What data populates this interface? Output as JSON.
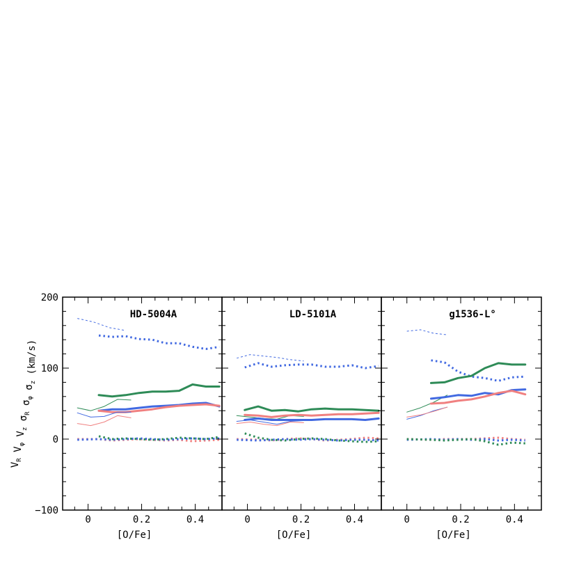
{
  "chart_data": [
    {
      "type": "line",
      "title": "HD-5004A",
      "xlabel": "[O/Fe]",
      "xlim": [
        -0.095,
        0.5
      ],
      "ylim": [
        -100,
        200
      ],
      "x_ticks": [
        0,
        0.2,
        0.4
      ],
      "x_tick_labels": [
        "0",
        "0.2",
        "0.4"
      ],
      "y_ticks": [
        -100,
        0,
        100,
        200
      ],
      "y_tick_labels": [
        "−100",
        "0",
        "100",
        "200"
      ],
      "series": [
        {
          "name": "sigma_phi thin dotted",
          "color": "#4169e1",
          "style": "dotted",
          "width": "thin",
          "x": [
            -0.04,
            0.02,
            0.08,
            0.14
          ],
          "y": [
            170,
            165,
            157,
            153
          ]
        },
        {
          "name": "sigma_phi thick dotted",
          "color": "#4169e1",
          "style": "dotted",
          "width": "thick",
          "x": [
            0.04,
            0.09,
            0.14,
            0.19,
            0.24,
            0.29,
            0.34,
            0.39,
            0.44,
            0.49
          ],
          "y": [
            146,
            144,
            145,
            141,
            140,
            135,
            135,
            130,
            127,
            130
          ]
        },
        {
          "name": "sigma_z thick",
          "color": "#2e8b57",
          "style": "solid",
          "width": "thick",
          "x": [
            0.04,
            0.09,
            0.14,
            0.19,
            0.24,
            0.29,
            0.34,
            0.39,
            0.44,
            0.49
          ],
          "y": [
            62,
            60,
            62,
            65,
            67,
            67,
            68,
            77,
            74,
            74
          ]
        },
        {
          "name": "sigma_z thin",
          "color": "#2e8b57",
          "style": "solid",
          "width": "thin",
          "x": [
            -0.04,
            0.01,
            0.06,
            0.11,
            0.16
          ],
          "y": [
            44,
            40,
            46,
            56,
            55
          ]
        },
        {
          "name": "sigma_phi thick",
          "color": "#4169e1",
          "style": "solid",
          "width": "thick",
          "x": [
            0.04,
            0.09,
            0.14,
            0.19,
            0.24,
            0.29,
            0.34,
            0.39,
            0.44,
            0.49
          ],
          "y": [
            40,
            42,
            42,
            44,
            46,
            47,
            48,
            50,
            51,
            46
          ]
        },
        {
          "name": "sigma_R thick",
          "color": "#f08080",
          "style": "solid",
          "width": "thick",
          "x": [
            0.04,
            0.09,
            0.14,
            0.19,
            0.24,
            0.29,
            0.34,
            0.39,
            0.44,
            0.49
          ],
          "y": [
            40,
            38,
            38,
            40,
            42,
            45,
            47,
            48,
            49,
            47
          ]
        },
        {
          "name": "sigma_phi thin",
          "color": "#4169e1",
          "style": "solid",
          "width": "thin",
          "x": [
            -0.04,
            0.01,
            0.06,
            0.11,
            0.16
          ],
          "y": [
            37,
            31,
            32,
            38,
            38
          ]
        },
        {
          "name": "sigma_R thin",
          "color": "#f08080",
          "style": "solid",
          "width": "thin",
          "x": [
            -0.04,
            0.01,
            0.06,
            0.11,
            0.16
          ],
          "y": [
            22,
            19,
            24,
            33,
            30
          ]
        },
        {
          "name": "V_R dotted",
          "color": "#f08080",
          "style": "dotted",
          "width": "thick",
          "x": [
            -0.04,
            0.04,
            0.09,
            0.14,
            0.19,
            0.24,
            0.29,
            0.34,
            0.39,
            0.44,
            0.49
          ],
          "y": [
            0,
            0,
            -2,
            -1,
            0,
            -1,
            -2,
            -1,
            -3,
            -2,
            -1
          ]
        },
        {
          "name": "V_phi dotted",
          "color": "#4169e1",
          "style": "dotted",
          "width": "thick",
          "x": [
            -0.04,
            0.04,
            0.09,
            0.14,
            0.19,
            0.24,
            0.29,
            0.34,
            0.39,
            0.44,
            0.49
          ],
          "y": [
            -1,
            0,
            -1,
            0,
            1,
            0,
            -1,
            0,
            1,
            0,
            1
          ]
        },
        {
          "name": "V_z dotted",
          "color": "#2e8b57",
          "style": "dotted",
          "width": "thick",
          "x": [
            0.04,
            0.09,
            0.14,
            0.19,
            0.24,
            0.29,
            0.34,
            0.39,
            0.44,
            0.49
          ],
          "y": [
            4,
            0,
            1,
            0,
            -1,
            0,
            2,
            1,
            0,
            3
          ]
        }
      ]
    },
    {
      "type": "line",
      "title": "LD-5101A",
      "xlabel": "[O/Fe]",
      "xlim": [
        -0.095,
        0.5
      ],
      "ylim": [
        -100,
        200
      ],
      "x_ticks": [
        0,
        0.2,
        0.4
      ],
      "x_tick_labels": [
        "0",
        "0.2",
        "0.4"
      ],
      "y_ticks": [
        -100,
        0,
        100,
        200
      ],
      "y_tick_labels": [
        "",
        "",
        "",
        ""
      ],
      "series": [
        {
          "name": "sigma_phi thin dotted",
          "color": "#4169e1",
          "style": "dotted",
          "width": "thin",
          "x": [
            -0.04,
            0.01,
            0.06,
            0.11,
            0.16,
            0.21
          ],
          "y": [
            114,
            119,
            117,
            115,
            112,
            110
          ]
        },
        {
          "name": "sigma_phi thick dotted",
          "color": "#4169e1",
          "style": "dotted",
          "width": "thick",
          "x": [
            -0.01,
            0.04,
            0.09,
            0.14,
            0.19,
            0.24,
            0.29,
            0.34,
            0.39,
            0.44,
            0.49
          ],
          "y": [
            101,
            107,
            102,
            104,
            105,
            105,
            102,
            102,
            104,
            100,
            103
          ]
        },
        {
          "name": "sigma_z thick",
          "color": "#2e8b57",
          "style": "solid",
          "width": "thick",
          "x": [
            -0.01,
            0.04,
            0.09,
            0.14,
            0.19,
            0.24,
            0.29,
            0.34,
            0.39,
            0.44,
            0.49
          ],
          "y": [
            41,
            46,
            40,
            41,
            39,
            42,
            43,
            42,
            42,
            41,
            40
          ]
        },
        {
          "name": "sigma_z thin",
          "color": "#2e8b57",
          "style": "solid",
          "width": "thin",
          "x": [
            -0.04,
            0.01,
            0.06,
            0.11,
            0.16,
            0.21
          ],
          "y": [
            33,
            31,
            29,
            28,
            33,
            32
          ]
        },
        {
          "name": "sigma_R thick",
          "color": "#f08080",
          "style": "solid",
          "width": "thick",
          "x": [
            -0.01,
            0.04,
            0.09,
            0.14,
            0.19,
            0.24,
            0.29,
            0.34,
            0.39,
            0.44,
            0.49
          ],
          "y": [
            34,
            33,
            31,
            33,
            34,
            33,
            34,
            35,
            35,
            36,
            37
          ]
        },
        {
          "name": "sigma_phi thick",
          "color": "#4169e1",
          "style": "solid",
          "width": "thick",
          "x": [
            -0.01,
            0.04,
            0.09,
            0.14,
            0.19,
            0.24,
            0.29,
            0.34,
            0.39,
            0.44,
            0.49
          ],
          "y": [
            27,
            29,
            27,
            27,
            27,
            27,
            28,
            28,
            28,
            27,
            29
          ]
        },
        {
          "name": "sigma_phi thin",
          "color": "#4169e1",
          "style": "solid",
          "width": "thin",
          "x": [
            -0.04,
            0.01,
            0.06,
            0.11,
            0.16,
            0.21
          ],
          "y": [
            25,
            27,
            24,
            21,
            25,
            26
          ]
        },
        {
          "name": "sigma_R thin",
          "color": "#f08080",
          "style": "solid",
          "width": "thin",
          "x": [
            -0.04,
            0.01,
            0.06,
            0.11,
            0.16,
            0.21
          ],
          "y": [
            22,
            24,
            21,
            19,
            24,
            23
          ]
        },
        {
          "name": "V_R dotted",
          "color": "#f08080",
          "style": "dotted",
          "width": "thick",
          "x": [
            -0.04,
            0.04,
            0.09,
            0.14,
            0.19,
            0.24,
            0.29,
            0.34,
            0.39,
            0.44,
            0.49
          ],
          "y": [
            0,
            -1,
            -2,
            0,
            1,
            0,
            -2,
            -1,
            0,
            2,
            1
          ]
        },
        {
          "name": "V_phi dotted",
          "color": "#4169e1",
          "style": "dotted",
          "width": "thick",
          "x": [
            -0.04,
            0.04,
            0.09,
            0.14,
            0.19,
            0.24,
            0.29,
            0.34,
            0.39,
            0.44,
            0.49
          ],
          "y": [
            -1,
            -2,
            -1,
            0,
            -1,
            0,
            -1,
            -2,
            -1,
            -1,
            -2
          ]
        },
        {
          "name": "V_z dotted",
          "color": "#2e8b57",
          "style": "dotted",
          "width": "thick",
          "x": [
            -0.01,
            0.04,
            0.09,
            0.14,
            0.19,
            0.24,
            0.29,
            0.34,
            0.39,
            0.44,
            0.49
          ],
          "y": [
            8,
            2,
            -1,
            -2,
            0,
            1,
            0,
            -2,
            -3,
            -4,
            -3
          ]
        }
      ]
    },
    {
      "type": "line",
      "title": "g1536-L°",
      "xlabel": "[O/Fe]",
      "xlim": [
        -0.095,
        0.5
      ],
      "ylim": [
        -100,
        200
      ],
      "x_ticks": [
        0,
        0.2,
        0.4
      ],
      "x_tick_labels": [
        "0",
        "0.2",
        "0.4"
      ],
      "y_ticks": [
        -100,
        0,
        100,
        200
      ],
      "y_tick_labels": [
        "",
        "",
        "",
        ""
      ],
      "series": [
        {
          "name": "sigma_phi thin dotted",
          "color": "#4169e1",
          "style": "dotted",
          "width": "thin",
          "x": [
            0.0,
            0.05,
            0.1,
            0.15
          ],
          "y": [
            152,
            154,
            149,
            147
          ]
        },
        {
          "name": "sigma_phi thick dotted",
          "color": "#4169e1",
          "style": "dotted",
          "width": "thick",
          "x": [
            0.09,
            0.14,
            0.19,
            0.24,
            0.29,
            0.34,
            0.39,
            0.44
          ],
          "y": [
            111,
            108,
            95,
            88,
            86,
            82,
            87,
            88
          ]
        },
        {
          "name": "sigma_z thick",
          "color": "#2e8b57",
          "style": "solid",
          "width": "thick",
          "x": [
            0.09,
            0.14,
            0.19,
            0.24,
            0.29,
            0.34,
            0.39,
            0.44
          ],
          "y": [
            79,
            80,
            86,
            89,
            100,
            107,
            105,
            105
          ]
        },
        {
          "name": "sigma_z thin",
          "color": "#2e8b57",
          "style": "solid",
          "width": "thin",
          "x": [
            0.0,
            0.05,
            0.1,
            0.15
          ],
          "y": [
            38,
            44,
            52,
            62
          ]
        },
        {
          "name": "sigma_phi thick",
          "color": "#4169e1",
          "style": "solid",
          "width": "thick",
          "x": [
            0.09,
            0.14,
            0.19,
            0.24,
            0.29,
            0.34,
            0.39,
            0.44
          ],
          "y": [
            57,
            59,
            62,
            61,
            65,
            63,
            69,
            70
          ]
        },
        {
          "name": "sigma_R thick",
          "color": "#f08080",
          "style": "solid",
          "width": "thick",
          "x": [
            0.09,
            0.14,
            0.19,
            0.24,
            0.29,
            0.34,
            0.39,
            0.44
          ],
          "y": [
            50,
            51,
            54,
            56,
            60,
            65,
            68,
            63
          ]
        },
        {
          "name": "sigma_phi thin",
          "color": "#4169e1",
          "style": "solid",
          "width": "thin",
          "x": [
            0.0,
            0.05,
            0.1,
            0.15
          ],
          "y": [
            28,
            33,
            40,
            45
          ]
        },
        {
          "name": "sigma_R thin",
          "color": "#f08080",
          "style": "solid",
          "width": "thin",
          "x": [
            0.0,
            0.05,
            0.1,
            0.15
          ],
          "y": [
            31,
            34,
            39,
            45
          ]
        },
        {
          "name": "V_R dotted",
          "color": "#f08080",
          "style": "dotted",
          "width": "thick",
          "x": [
            0.0,
            0.09,
            0.14,
            0.19,
            0.24,
            0.29,
            0.34,
            0.39,
            0.44
          ],
          "y": [
            0,
            -1,
            0,
            0,
            0,
            1,
            2,
            0,
            -1
          ]
        },
        {
          "name": "V_phi dotted",
          "color": "#4169e1",
          "style": "dotted",
          "width": "thick",
          "x": [
            0.0,
            0.09,
            0.14,
            0.19,
            0.24,
            0.29,
            0.34,
            0.39,
            0.44
          ],
          "y": [
            -1,
            0,
            -1,
            0,
            -1,
            0,
            -2,
            -1,
            -2
          ]
        },
        {
          "name": "V_z dotted",
          "color": "#2e8b57",
          "style": "dotted",
          "width": "thick",
          "x": [
            0.0,
            0.09,
            0.14,
            0.19,
            0.24,
            0.29,
            0.34,
            0.39,
            0.44
          ],
          "y": [
            0,
            -1,
            -2,
            -1,
            0,
            -3,
            -8,
            -5,
            -6
          ]
        }
      ]
    }
  ],
  "ylabel": {
    "parts": [
      {
        "main": "V",
        "sub": "R"
      },
      {
        "main": " V",
        "sub": "φ"
      },
      {
        "main": " V",
        "sub": "z"
      },
      {
        "main": "   σ",
        "sub": "R"
      },
      {
        "main": " σ",
        "sub": "φ"
      },
      {
        "main": " σ",
        "sub": "z"
      },
      {
        "main": " (km/s)",
        "sub": ""
      }
    ]
  },
  "colors": {
    "blue": "#4169e1",
    "green": "#2e8b57",
    "red": "#f08080",
    "axis": "#000000"
  }
}
